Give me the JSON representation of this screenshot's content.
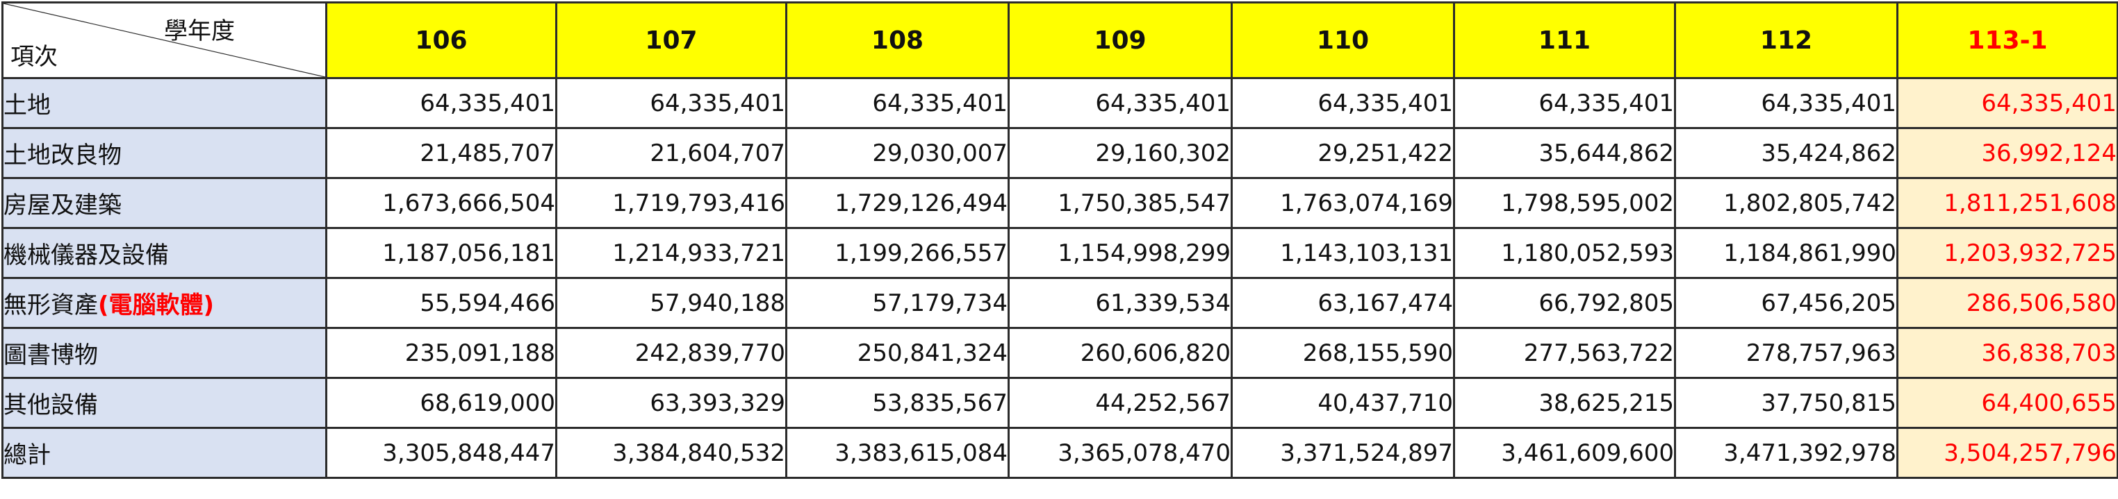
{
  "header": {
    "corner_top": "學年度",
    "corner_bottom": "項次",
    "years": [
      "106",
      "107",
      "108",
      "109",
      "110",
      "111",
      "112",
      "113-1"
    ]
  },
  "colors": {
    "header_fill": "#ffff00",
    "label_fill": "#d9e1f2",
    "highlight_fill": "#fff2cc",
    "highlight_text": "#ff0000"
  },
  "rows": [
    {
      "label": "土地",
      "label_suffix": "",
      "values": [
        "64,335,401",
        "64,335,401",
        "64,335,401",
        "64,335,401",
        "64,335,401",
        "64,335,401",
        "64,335,401",
        "64,335,401"
      ]
    },
    {
      "label": "土地改良物",
      "label_suffix": "",
      "values": [
        "21,485,707",
        "21,604,707",
        "29,030,007",
        "29,160,302",
        "29,251,422",
        "35,644,862",
        "35,424,862",
        "36,992,124"
      ]
    },
    {
      "label": "房屋及建築",
      "label_suffix": "",
      "values": [
        "1,673,666,504",
        "1,719,793,416",
        "1,729,126,494",
        "1,750,385,547",
        "1,763,074,169",
        "1,798,595,002",
        "1,802,805,742",
        "1,811,251,608"
      ]
    },
    {
      "label": "機械儀器及設備",
      "label_suffix": "",
      "values": [
        "1,187,056,181",
        "1,214,933,721",
        "1,199,266,557",
        "1,154,998,299",
        "1,143,103,131",
        "1,180,052,593",
        "1,184,861,990",
        "1,203,932,725"
      ]
    },
    {
      "label": "無形資產",
      "label_suffix": "(電腦軟體)",
      "values": [
        "55,594,466",
        "57,940,188",
        "57,179,734",
        "61,339,534",
        "63,167,474",
        "66,792,805",
        "67,456,205",
        "286,506,580"
      ]
    },
    {
      "label": "圖書博物",
      "label_suffix": "",
      "values": [
        "235,091,188",
        "242,839,770",
        "250,841,324",
        "260,606,820",
        "268,155,590",
        "277,563,722",
        "278,757,963",
        "36,838,703"
      ]
    },
    {
      "label": "其他設備",
      "label_suffix": "",
      "values": [
        "68,619,000",
        "63,393,329",
        "53,835,567",
        "44,252,567",
        "40,437,710",
        "38,625,215",
        "37,750,815",
        "64,400,655"
      ]
    },
    {
      "label": "總計",
      "label_suffix": "",
      "values": [
        "3,305,848,447",
        "3,384,840,532",
        "3,383,615,084",
        "3,365,078,470",
        "3,371,524,897",
        "3,461,609,600",
        "3,471,392,978",
        "3,504,257,796"
      ]
    }
  ]
}
